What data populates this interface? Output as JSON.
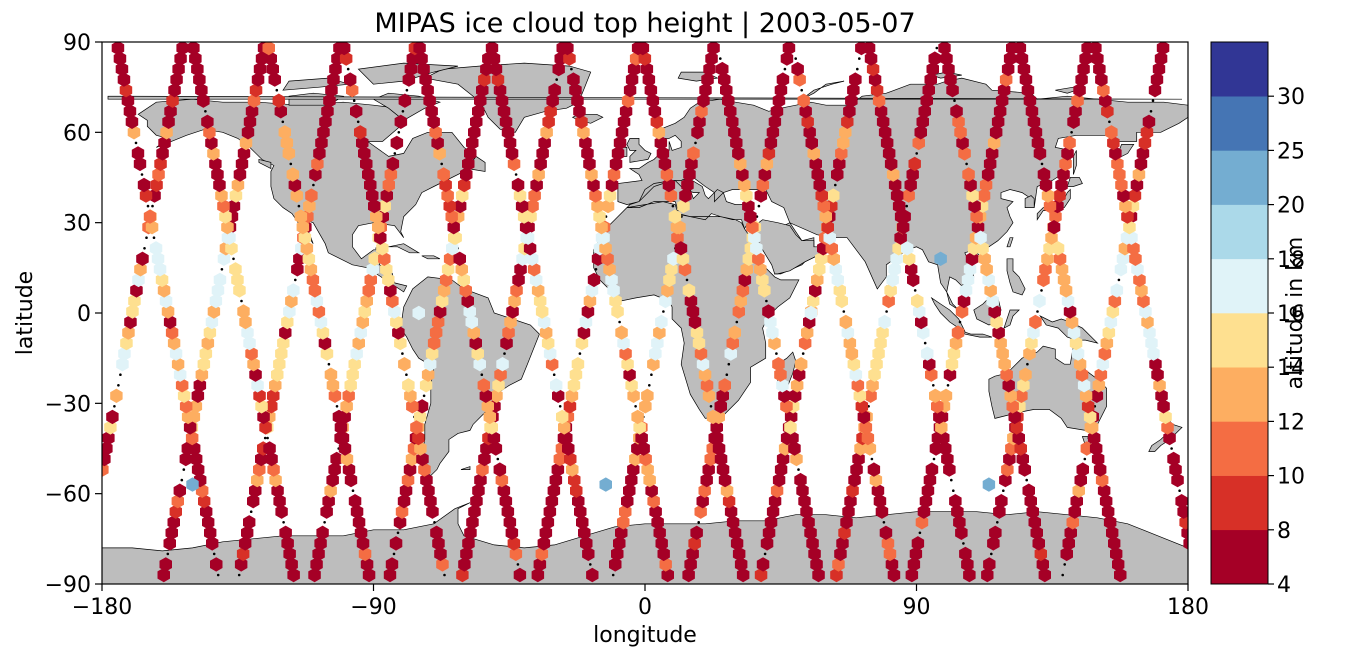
{
  "chart_data": {
    "type": "scatter",
    "title": "MIPAS ice cloud top height | 2003-05-07",
    "xlabel": "longitude",
    "ylabel": "latitude",
    "xlim": [
      -180,
      180
    ],
    "ylim": [
      -90,
      90
    ],
    "x_ticks": [
      -180,
      -90,
      0,
      90,
      180
    ],
    "y_ticks": [
      -90,
      -60,
      -30,
      0,
      30,
      60,
      90
    ],
    "x_tick_labels": [
      "−180",
      "−90",
      "0",
      "90",
      "180"
    ],
    "y_tick_labels": [
      "−90",
      "−60",
      "−30",
      "0",
      "30",
      "60",
      "90"
    ],
    "grid": false,
    "marker": "hexagon",
    "basemap": "world coastlines, land shaded grey",
    "land_color": "#bdbdbd",
    "colorbar": {
      "label": "altitude in km",
      "bounds": [
        4,
        8,
        10,
        12,
        14,
        16,
        18,
        20,
        25,
        30
      ],
      "tick_labels": [
        "4",
        "8",
        "10",
        "12",
        "14",
        "16",
        "18",
        "20",
        "25",
        "30"
      ],
      "colors": [
        "#a50026",
        "#d73027",
        "#f46d43",
        "#fdae61",
        "#fee090",
        "#e0f3f8",
        "#abd9e9",
        "#74add1",
        "#4575b4",
        "#313695"
      ]
    },
    "orbits_ascending_cross_lon": [
      -170,
      -143,
      -118,
      -93,
      -68,
      -44,
      -19,
      6,
      31,
      55,
      80,
      105,
      130,
      155
    ],
    "orbits_descending_cross_lon": [
      -158,
      -133,
      -108,
      -83,
      -58,
      -34,
      -9,
      16,
      41,
      66,
      91,
      116,
      141,
      166
    ],
    "points_sample": [
      {
        "lon": -150,
        "lat": -57,
        "height_km": 21
      },
      {
        "lon": -13,
        "lat": -57,
        "height_km": 21
      },
      {
        "lon": 114,
        "lat": -57,
        "height_km": 21
      },
      {
        "lon": 98,
        "lat": 18,
        "height_km": 20
      },
      {
        "lon": 55,
        "lat": 0,
        "height_km": 17
      },
      {
        "lon": -75,
        "lat": 0,
        "height_km": 17
      }
    ]
  }
}
